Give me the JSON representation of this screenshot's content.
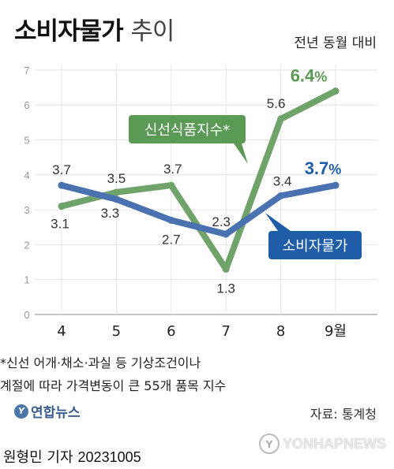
{
  "header": {
    "title_main": "소비자물가",
    "title_sub": "추이",
    "unit": "전년 동월 대비"
  },
  "footnote": {
    "line1": "*신선 어개·채소·과실 등 기상조건이나",
    "line2": "계절에 따라 가격변동이 큰 55개 품목 지수"
  },
  "footer": {
    "logo": "연합뉴스",
    "source": "자료: 통계청",
    "reporter": "원형민 기자",
    "date": "20231005",
    "watermark": "YONHAPNEWS"
  },
  "chart_data": {
    "type": "line",
    "x": [
      "4",
      "5",
      "6",
      "7",
      "8",
      "9월"
    ],
    "ylim": [
      0,
      7
    ],
    "yticks": [
      "0",
      "1",
      "2",
      "3",
      "4",
      "5",
      "6",
      "7"
    ],
    "grid": true,
    "series": [
      {
        "name": "소비자물가",
        "color": "#4a72b0",
        "label_color": "#ffffff",
        "label_bg": "#1f5da8",
        "values": [
          3.7,
          3.3,
          2.7,
          2.3,
          3.4,
          3.7
        ],
        "labels": [
          "3.7",
          "3.3",
          "2.7",
          "2.3",
          "3.4",
          "3.7"
        ],
        "last_label_suffix": "%"
      },
      {
        "name": "신선식품지수*",
        "color": "#6fa36a",
        "label_color": "#ffffff",
        "label_bg": "#5a9a55",
        "values": [
          3.1,
          3.5,
          3.7,
          1.3,
          5.6,
          6.4
        ],
        "labels": [
          "3.1",
          "3.5",
          "3.7",
          "1.3",
          "5.6",
          "6.4"
        ],
        "last_label_suffix": "%"
      }
    ]
  }
}
